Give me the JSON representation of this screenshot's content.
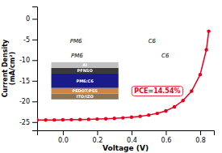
{
  "chart_data": {
    "type": "line",
    "xlabel": "Voltage (V)",
    "ylabel": "Current Density\n(mA/cm²)",
    "x": [
      -0.15,
      -0.1,
      -0.05,
      0.0,
      0.05,
      0.1,
      0.15,
      0.2,
      0.25,
      0.3,
      0.35,
      0.4,
      0.45,
      0.5,
      0.55,
      0.6,
      0.65,
      0.7,
      0.75,
      0.8,
      0.836,
      0.85
    ],
    "values": [
      -24.5,
      -24.5,
      -24.48,
      -24.45,
      -24.42,
      -24.38,
      -24.33,
      -24.27,
      -24.2,
      -24.1,
      -23.98,
      -23.82,
      -23.6,
      -23.3,
      -22.9,
      -22.3,
      -21.3,
      -19.8,
      -17.5,
      -13.5,
      -7.5,
      -3.0
    ],
    "color": "#e8001e",
    "marker": "circle",
    "xlim": [
      -0.15,
      0.88
    ],
    "ylim": [
      -27,
      3
    ],
    "xticks": [
      {
        "value": 0.0,
        "label": "0.0"
      },
      0.2,
      0.4,
      0.6,
      0.8
    ],
    "yticks": [
      0,
      -5,
      -10,
      -15,
      -20,
      -25
    ],
    "grid": false,
    "annotations": [
      {
        "text": "PCE=14.54%",
        "color": "#e8001e"
      },
      {
        "text": "PM6"
      },
      {
        "text": "C6"
      },
      {
        "text": "PM6"
      },
      {
        "text": "C6"
      },
      {
        "text": "ITO/IZO",
        "color": "#8B7355"
      },
      {
        "text": "PEDOT:PSS",
        "color": "#CD853F"
      },
      {
        "text": "PM6:C6",
        "color": "#1a1a8a"
      },
      {
        "text": "PFNSO",
        "color": "#3a3a3a"
      },
      {
        "text": "Al",
        "color": "#C0C0C0"
      }
    ]
  }
}
